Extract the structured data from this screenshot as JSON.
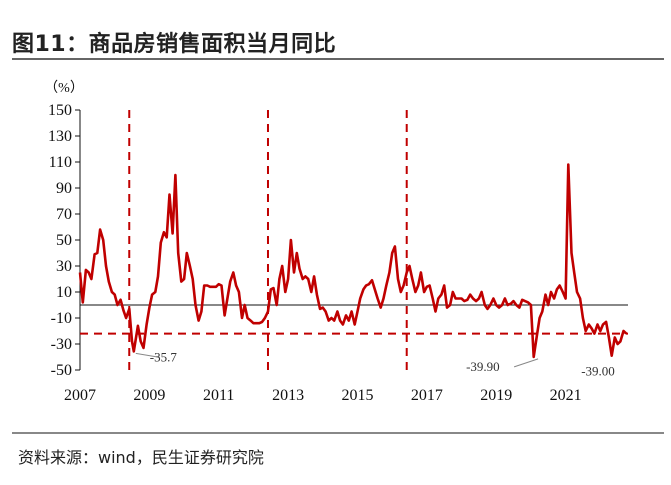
{
  "header": {
    "title": "图11：商品房销售面积当月同比"
  },
  "footer": {
    "source": "资料来源：wind，民生证券研究院"
  },
  "chart_data": {
    "type": "line",
    "title": "图11：商品房销售面积当月同比",
    "ylabel": "（%）",
    "ylim": [
      -50,
      150
    ],
    "yticks": [
      150,
      130,
      110,
      90,
      70,
      50,
      30,
      10,
      -10,
      -30,
      -50
    ],
    "xlim": [
      2007,
      2022.8
    ],
    "xticks": [
      2007,
      2009,
      2011,
      2013,
      2015,
      2017,
      2019,
      2021
    ],
    "reference_lines": {
      "horizontal": -22,
      "vertical": [
        2008.42,
        2012.42,
        2016.42
      ]
    },
    "annotations": [
      {
        "text": "-35.7",
        "x": 2008.55,
        "y": -35.7
      },
      {
        "text": "-39.90",
        "x": 2020.15,
        "y": -39.9
      },
      {
        "text": "-39.00",
        "x": 2022.2,
        "y": -39.0
      }
    ],
    "series": [
      {
        "name": "商品房销售面积当月同比",
        "color": "#c00000",
        "x": [
          2007.0,
          2007.08,
          2007.17,
          2007.25,
          2007.33,
          2007.42,
          2007.5,
          2007.58,
          2007.67,
          2007.75,
          2007.83,
          2007.92,
          2008.0,
          2008.08,
          2008.17,
          2008.25,
          2008.33,
          2008.42,
          2008.5,
          2008.55,
          2008.67,
          2008.75,
          2008.83,
          2008.92,
          2009.0,
          2009.08,
          2009.17,
          2009.25,
          2009.33,
          2009.42,
          2009.5,
          2009.58,
          2009.67,
          2009.75,
          2009.83,
          2009.92,
          2010.0,
          2010.08,
          2010.17,
          2010.25,
          2010.33,
          2010.42,
          2010.5,
          2010.58,
          2010.67,
          2010.75,
          2010.83,
          2010.92,
          2011.0,
          2011.08,
          2011.17,
          2011.25,
          2011.33,
          2011.42,
          2011.5,
          2011.58,
          2011.67,
          2011.75,
          2011.83,
          2011.92,
          2012.0,
          2012.08,
          2012.17,
          2012.25,
          2012.33,
          2012.42,
          2012.5,
          2012.58,
          2012.67,
          2012.75,
          2012.83,
          2012.92,
          2013.0,
          2013.08,
          2013.17,
          2013.25,
          2013.33,
          2013.42,
          2013.5,
          2013.58,
          2013.67,
          2013.75,
          2013.83,
          2013.92,
          2014.0,
          2014.08,
          2014.17,
          2014.25,
          2014.33,
          2014.42,
          2014.5,
          2014.58,
          2014.67,
          2014.75,
          2014.83,
          2014.92,
          2015.0,
          2015.08,
          2015.17,
          2015.25,
          2015.33,
          2015.42,
          2015.5,
          2015.58,
          2015.67,
          2015.75,
          2015.83,
          2015.92,
          2016.0,
          2016.08,
          2016.17,
          2016.25,
          2016.33,
          2016.42,
          2016.5,
          2016.58,
          2016.67,
          2016.75,
          2016.83,
          2016.92,
          2017.0,
          2017.08,
          2017.17,
          2017.25,
          2017.33,
          2017.42,
          2017.5,
          2017.58,
          2017.67,
          2017.75,
          2017.83,
          2017.92,
          2018.0,
          2018.08,
          2018.17,
          2018.25,
          2018.33,
          2018.42,
          2018.5,
          2018.58,
          2018.67,
          2018.75,
          2018.83,
          2018.92,
          2019.0,
          2019.08,
          2019.17,
          2019.25,
          2019.33,
          2019.42,
          2019.5,
          2019.58,
          2019.67,
          2019.75,
          2019.83,
          2019.92,
          2020.0,
          2020.08,
          2020.17,
          2020.25,
          2020.33,
          2020.42,
          2020.5,
          2020.58,
          2020.67,
          2020.75,
          2020.83,
          2020.92,
          2021.0,
          2021.08,
          2021.17,
          2021.25,
          2021.33,
          2021.42,
          2021.5,
          2021.58,
          2021.67,
          2021.75,
          2021.83,
          2021.92,
          2022.0,
          2022.08,
          2022.17,
          2022.25,
          2022.33,
          2022.42,
          2022.5,
          2022.58,
          2022.67,
          2022.75
        ],
        "values": [
          25,
          2,
          27,
          25,
          20,
          39,
          40,
          58,
          50,
          30,
          18,
          10,
          8,
          0,
          4,
          -4,
          -10,
          -3,
          -28,
          -35.7,
          -16,
          -28,
          -33,
          -15,
          -2,
          8,
          10,
          22,
          48,
          56,
          52,
          85,
          55,
          100,
          40,
          18,
          20,
          40,
          30,
          20,
          0,
          -12,
          -5,
          15,
          15,
          14,
          14,
          14,
          16,
          15,
          -8,
          5,
          18,
          25,
          15,
          10,
          -10,
          0,
          -10,
          -12,
          -14,
          -14,
          -14,
          -13,
          -10,
          -5,
          12,
          13,
          0,
          20,
          30,
          10,
          20,
          50,
          25,
          40,
          28,
          20,
          22,
          20,
          10,
          22,
          8,
          -3,
          -2,
          -5,
          -12,
          -10,
          -12,
          -5,
          -12,
          -15,
          -8,
          -12,
          -5,
          -15,
          -5,
          5,
          12,
          15,
          16,
          19,
          12,
          5,
          -2,
          5,
          15,
          25,
          40,
          45,
          20,
          10,
          15,
          25,
          30,
          20,
          10,
          15,
          25,
          10,
          14,
          15,
          5,
          -5,
          5,
          8,
          15,
          -2,
          0,
          10,
          5,
          5,
          5,
          3,
          4,
          8,
          5,
          3,
          5,
          10,
          0,
          -3,
          0,
          5,
          0,
          -2,
          0,
          5,
          0,
          1,
          3,
          0,
          -2,
          4,
          3,
          2,
          0,
          -39.9,
          -24,
          -10,
          -5,
          8,
          0,
          10,
          5,
          12,
          15,
          10,
          5,
          108,
          40,
          25,
          10,
          5,
          -10,
          -20,
          -15,
          -18,
          -22,
          -15,
          -20,
          -15,
          -13,
          -25,
          -39,
          -25,
          -30,
          -28,
          -20,
          -22
        ]
      }
    ]
  }
}
